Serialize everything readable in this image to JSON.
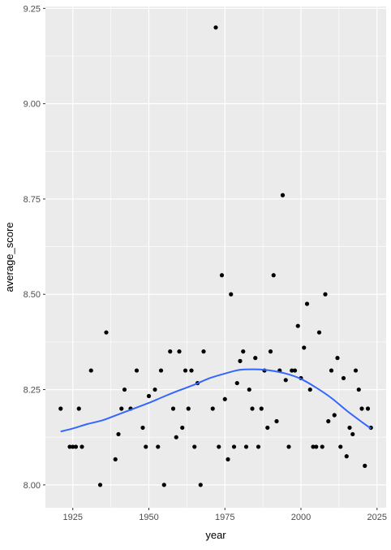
{
  "chart_data": {
    "type": "scatter",
    "xlabel": "year",
    "ylabel": "average_score",
    "xlim": [
      1916,
      2028
    ],
    "ylim": [
      7.94,
      9.255
    ],
    "x_ticks": [
      1925,
      1950,
      1975,
      2000,
      2025
    ],
    "x_tick_labels": [
      "1925",
      "1950",
      "1975",
      "2000",
      "2025"
    ],
    "y_ticks": [
      8.0,
      8.25,
      8.5,
      8.75,
      9.0,
      9.25
    ],
    "y_tick_labels": [
      "8.00",
      "8.25",
      "8.50",
      "8.75",
      "9.00",
      "9.25"
    ],
    "grid": true,
    "legend": "none",
    "colors": {
      "panel": "#ebebeb",
      "grid": "#ffffff",
      "points": "#000000",
      "smooth_line": "#3366ff"
    },
    "points": {
      "x": [
        1921,
        1924,
        1925,
        1926,
        1927,
        1928,
        1931,
        1934,
        1936,
        1939,
        1940,
        1941,
        1942,
        1944,
        1946,
        1948,
        1949,
        1950,
        1952,
        1953,
        1954,
        1955,
        1957,
        1958,
        1959,
        1960,
        1961,
        1962,
        1963,
        1964,
        1965,
        1966,
        1967,
        1968,
        1971,
        1972,
        1973,
        1974,
        1975,
        1976,
        1977,
        1978,
        1979,
        1980,
        1981,
        1982,
        1983,
        1984,
        1985,
        1986,
        1987,
        1988,
        1989,
        1990,
        1991,
        1992,
        1993,
        1994,
        1995,
        1996,
        1997,
        1998,
        1999,
        2000,
        2001,
        2002,
        2003,
        2004,
        2005,
        2006,
        2007,
        2008,
        2009,
        2010,
        2011,
        2012,
        2013,
        2014,
        2015,
        2016,
        2017,
        2018,
        2019,
        2020,
        2021,
        2022,
        2023
      ],
      "y": [
        8.2,
        8.1,
        8.1,
        8.1,
        8.2,
        8.1,
        8.3,
        8.0,
        8.4,
        8.067,
        8.133,
        8.2,
        8.25,
        8.2,
        8.3,
        8.15,
        8.1,
        8.233,
        8.25,
        8.1,
        8.3,
        8.0,
        8.35,
        8.2,
        8.125,
        8.35,
        8.15,
        8.3,
        8.2,
        8.3,
        8.1,
        8.267,
        8.0,
        8.35,
        8.2,
        9.2,
        8.1,
        8.55,
        8.225,
        8.067,
        8.5,
        8.1,
        8.267,
        8.325,
        8.35,
        8.1,
        8.25,
        8.2,
        8.333,
        8.1,
        8.2,
        8.3,
        8.15,
        8.35,
        8.55,
        8.167,
        8.3,
        8.76,
        8.275,
        8.1,
        8.3,
        8.3,
        8.417,
        8.28,
        8.36,
        8.475,
        8.25,
        8.1,
        8.1,
        8.4,
        8.1,
        8.5,
        8.167,
        8.3,
        8.183,
        8.333,
        8.1,
        8.28,
        8.075,
        8.15,
        8.133,
        8.3,
        8.25,
        8.2,
        8.05,
        8.2,
        8.15
      ]
    },
    "smooth": {
      "x": [
        1921,
        1925,
        1930,
        1935,
        1940,
        1945,
        1950,
        1955,
        1960,
        1965,
        1970,
        1975,
        1980,
        1985,
        1990,
        1995,
        2000,
        2005,
        2010,
        2015,
        2020,
        2023
      ],
      "y": [
        8.14,
        8.148,
        8.16,
        8.17,
        8.185,
        8.2,
        8.215,
        8.232,
        8.248,
        8.263,
        8.28,
        8.292,
        8.302,
        8.303,
        8.3,
        8.292,
        8.278,
        8.255,
        8.228,
        8.195,
        8.165,
        8.148
      ]
    }
  }
}
